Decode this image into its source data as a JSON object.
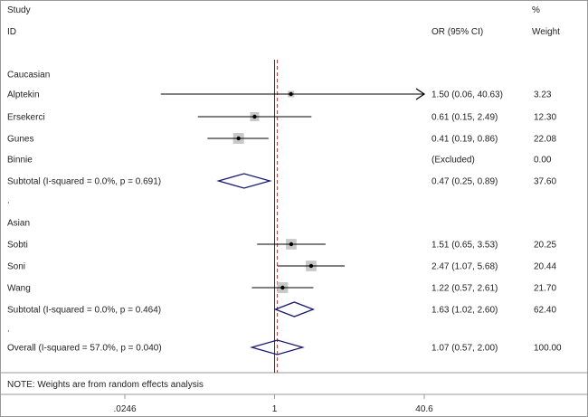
{
  "header": {
    "study": "Study",
    "id": "ID",
    "or_ci": "OR (95% CI)",
    "pct": "%",
    "weight": "Weight"
  },
  "chart_data": {
    "type": "forest",
    "xscale": "log",
    "null_value": 1,
    "overall_estimate": 1.07,
    "x_ticks": [
      {
        "value": 0.0246,
        "label": ".0246"
      },
      {
        "value": 1,
        "label": "1"
      },
      {
        "value": 40.6,
        "label": "40.6"
      }
    ],
    "rows": [
      {
        "kind": "group",
        "label": "Caucasian"
      },
      {
        "kind": "study",
        "label": "Alptekin",
        "or": 1.5,
        "lo": 0.06,
        "hi": 40.63,
        "or_text": "1.50 (0.06, 40.63)",
        "weight": 3.23,
        "weight_text": "3.23",
        "arrow_right": true
      },
      {
        "kind": "study",
        "label": "Ersekerci",
        "or": 0.61,
        "lo": 0.15,
        "hi": 2.49,
        "or_text": "0.61 (0.15, 2.49)",
        "weight": 12.3,
        "weight_text": "12.30"
      },
      {
        "kind": "study",
        "label": "Gunes",
        "or": 0.41,
        "lo": 0.19,
        "hi": 0.86,
        "or_text": "0.41 (0.19, 0.86)",
        "weight": 22.08,
        "weight_text": "22.08"
      },
      {
        "kind": "excluded",
        "label": "Binnie",
        "or_text": "(Excluded)",
        "weight_text": "0.00"
      },
      {
        "kind": "subtotal",
        "label": "Subtotal  (I-squared = 0.0%, p = 0.691)",
        "or": 0.47,
        "lo": 0.25,
        "hi": 0.89,
        "or_text": "0.47 (0.25, 0.89)",
        "weight_text": "37.60"
      },
      {
        "kind": "dot",
        "label": "."
      },
      {
        "kind": "group",
        "label": "Asian"
      },
      {
        "kind": "study",
        "label": "Sobti",
        "or": 1.51,
        "lo": 0.65,
        "hi": 3.53,
        "or_text": "1.51 (0.65, 3.53)",
        "weight": 20.25,
        "weight_text": "20.25"
      },
      {
        "kind": "study",
        "label": "Soni",
        "or": 2.47,
        "lo": 1.07,
        "hi": 5.68,
        "or_text": "2.47 (1.07, 5.68)",
        "weight": 20.44,
        "weight_text": "20.44"
      },
      {
        "kind": "study",
        "label": "Wang",
        "or": 1.22,
        "lo": 0.57,
        "hi": 2.61,
        "or_text": "1.22 (0.57, 2.61)",
        "weight": 21.7,
        "weight_text": "21.70"
      },
      {
        "kind": "subtotal",
        "label": "Subtotal  (I-squared = 0.0%, p = 0.464)",
        "or": 1.63,
        "lo": 1.02,
        "hi": 2.6,
        "or_text": "1.63 (1.02, 2.60)",
        "weight_text": "62.40"
      },
      {
        "kind": "dot",
        "label": "."
      },
      {
        "kind": "overall",
        "label": "Overall  (I-squared = 57.0%, p = 0.040)",
        "or": 1.07,
        "lo": 0.57,
        "hi": 2.0,
        "or_text": "1.07 (0.57, 2.00)",
        "weight_text": "100.00"
      }
    ],
    "note": "NOTE: Weights are from random effects analysis",
    "colors": {
      "text": "#222222",
      "frame": "#9a9a9a",
      "null_line": "#333333",
      "overall_line": "#c04040",
      "weight_box": "#c8c8c8",
      "diamond": "#1a1a6e",
      "ci_line": "#000000"
    }
  }
}
